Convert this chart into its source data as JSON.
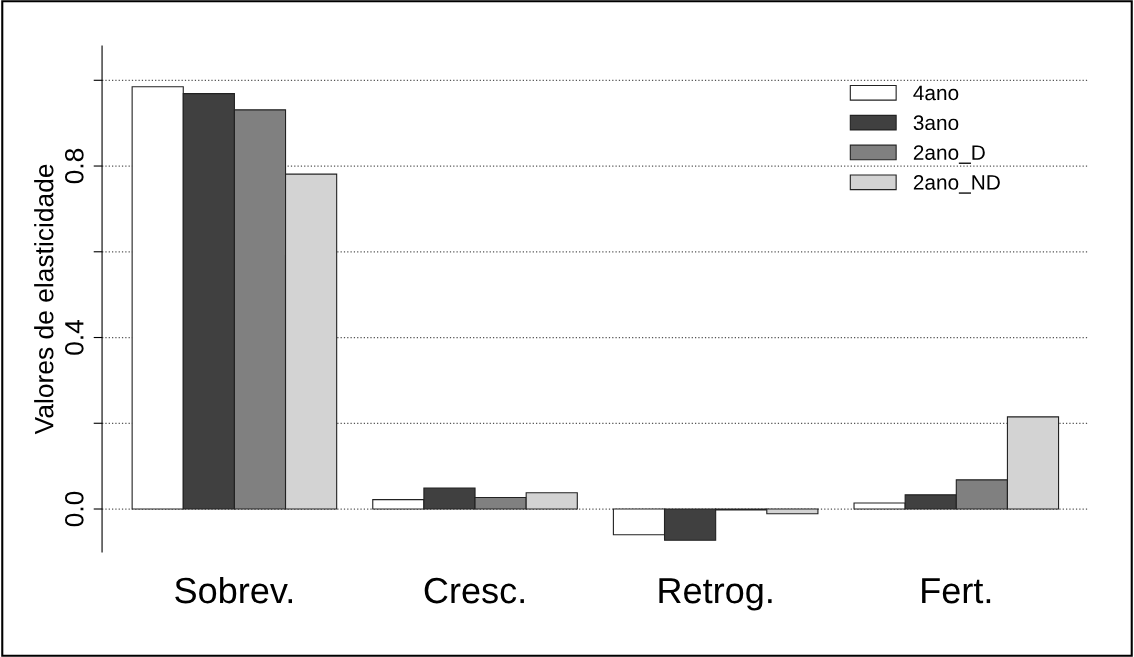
{
  "chart_data": {
    "type": "bar",
    "ylabel": "Valores de elasticidade",
    "categories": [
      "Sobrev.",
      "Cresc.",
      "Retrog.",
      "Fert."
    ],
    "series": [
      {
        "name": "4ano",
        "color": "#ffffff",
        "values": [
          0.985,
          0.022,
          -0.06,
          0.014
        ]
      },
      {
        "name": "3ano",
        "color": "#404040",
        "values": [
          0.969,
          0.049,
          -0.073,
          0.033
        ]
      },
      {
        "name": "2ano_D",
        "color": "#808080",
        "values": [
          0.931,
          0.027,
          -0.002,
          0.068
        ]
      },
      {
        "name": "2ano_ND",
        "color": "#d3d3d3",
        "values": [
          0.781,
          0.038,
          -0.011,
          0.215
        ]
      }
    ],
    "ylim": [
      -0.1,
      1.08
    ],
    "yticks": [
      {
        "value": 0.0,
        "label": "0.0"
      },
      {
        "value": 0.2,
        "label": null
      },
      {
        "value": 0.4,
        "label": "0.4"
      },
      {
        "value": 0.6,
        "label": null
      },
      {
        "value": 0.8,
        "label": "0.8"
      },
      {
        "value": 1.0,
        "label": null
      }
    ],
    "grid": "y",
    "line_style": "dotted",
    "legend": "top right"
  }
}
